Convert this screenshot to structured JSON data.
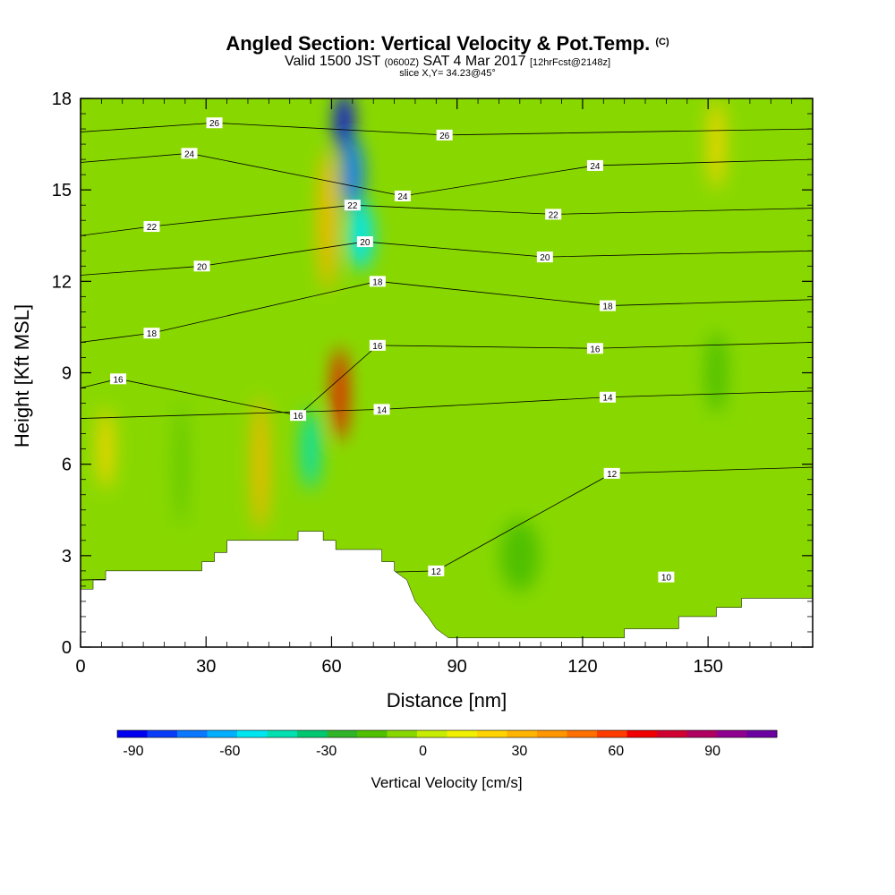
{
  "header": {
    "title_main": "Angled Section: Vertical Velocity & Pot.Temp.",
    "title_mark": "(C)",
    "valid_prefix": "Valid 1500 JST",
    "valid_z": "(0600Z)",
    "valid_date": "SAT 4 Mar 2017",
    "valid_fcst": "[12hrFcst@2148z]",
    "slice": "slice X,Y= 34.23@45°"
  },
  "chart_data": {
    "type": "heatmap",
    "xlabel": "Distance [nm]",
    "ylabel": "Height [Kft MSL]",
    "xlim": [
      0,
      175
    ],
    "ylim": [
      0,
      18
    ],
    "x_ticks": [
      0,
      30,
      60,
      90,
      120,
      150
    ],
    "y_ticks": [
      0,
      3,
      6,
      9,
      12,
      15,
      18
    ],
    "grid": false,
    "field": "Vertical Velocity [cm/s]",
    "colorbar": {
      "title": "Vertical Velocity [cm/s]",
      "placement": "bottom",
      "range": [
        -95,
        110
      ],
      "tick_values": [
        -90,
        -60,
        -30,
        0,
        30,
        60,
        90
      ],
      "tick_labels": [
        "-90",
        "-60",
        "-30",
        "0",
        "30",
        "60",
        "90"
      ],
      "colors": [
        "#0000f0",
        "#0a3cf8",
        "#0a78ff",
        "#00b0ff",
        "#00e6f0",
        "#00e0b0",
        "#00c870",
        "#30b428",
        "#50c000",
        "#88d800",
        "#c8ec00",
        "#f0f000",
        "#ffd400",
        "#ffb400",
        "#ff9600",
        "#ff7000",
        "#ff3c00",
        "#f00000",
        "#d00030",
        "#b00060",
        "#900090",
        "#6a00a0"
      ]
    },
    "velocity_features": [
      {
        "x": 63,
        "y": 17.2,
        "value": -90
      },
      {
        "x": 65,
        "y": 15.5,
        "value": -70
      },
      {
        "x": 67,
        "y": 13.5,
        "value": -50
      },
      {
        "x": 62,
        "y": 8.3,
        "value": 70
      },
      {
        "x": 59,
        "y": 14,
        "value": 30
      },
      {
        "x": 55,
        "y": 6.5,
        "value": -40
      },
      {
        "x": 43,
        "y": 6,
        "value": 30
      },
      {
        "x": 6,
        "y": 6.5,
        "value": 20
      },
      {
        "x": 24,
        "y": 6,
        "value": -20
      },
      {
        "x": 152,
        "y": 9,
        "value": -20
      },
      {
        "x": 152,
        "y": 16.5,
        "value": 25
      },
      {
        "x": 105,
        "y": 3,
        "value": -15
      }
    ],
    "theta_contours": [
      {
        "value": 10,
        "label_x": 140,
        "label_y": 2.3
      },
      {
        "value": 12,
        "label_x": 85,
        "label_y": 2.5
      },
      {
        "value": 12,
        "label_x": 127,
        "label_y": 5.7
      },
      {
        "value": 14,
        "label_x": 72,
        "label_y": 7.8
      },
      {
        "value": 14,
        "label_x": 126,
        "label_y": 8.2
      },
      {
        "value": 16,
        "label_x": 9,
        "label_y": 8.8
      },
      {
        "value": 16,
        "label_x": 52,
        "label_y": 7.6
      },
      {
        "value": 16,
        "label_x": 71,
        "label_y": 9.9
      },
      {
        "value": 16,
        "label_x": 123,
        "label_y": 9.8
      },
      {
        "value": 18,
        "label_x": 17,
        "label_y": 10.3
      },
      {
        "value": 18,
        "label_x": 71,
        "label_y": 12
      },
      {
        "value": 18,
        "label_x": 126,
        "label_y": 11.2
      },
      {
        "value": 20,
        "label_x": 29,
        "label_y": 12.5
      },
      {
        "value": 20,
        "label_x": 68,
        "label_y": 13.3
      },
      {
        "value": 20,
        "label_x": 111,
        "label_y": 12.8
      },
      {
        "value": 22,
        "label_x": 17,
        "label_y": 13.8
      },
      {
        "value": 22,
        "label_x": 65,
        "label_y": 14.5
      },
      {
        "value": 22,
        "label_x": 113,
        "label_y": 14.2
      },
      {
        "value": 24,
        "label_x": 26,
        "label_y": 16.2
      },
      {
        "value": 24,
        "label_x": 77,
        "label_y": 14.8
      },
      {
        "value": 24,
        "label_x": 123,
        "label_y": 15.8
      },
      {
        "value": 26,
        "label_x": 32,
        "label_y": 17.2
      },
      {
        "value": 26,
        "label_x": 87,
        "label_y": 16.8
      }
    ],
    "terrain": [
      [
        0,
        1.9
      ],
      [
        3,
        1.9
      ],
      [
        3,
        2.2
      ],
      [
        6,
        2.2
      ],
      [
        6,
        2.5
      ],
      [
        29,
        2.5
      ],
      [
        29,
        2.8
      ],
      [
        32,
        2.8
      ],
      [
        32,
        3.1
      ],
      [
        35,
        3.1
      ],
      [
        35,
        3.5
      ],
      [
        52,
        3.5
      ],
      [
        52,
        3.8
      ],
      [
        58,
        3.8
      ],
      [
        58,
        3.5
      ],
      [
        61,
        3.5
      ],
      [
        61,
        3.2
      ],
      [
        72,
        3.2
      ],
      [
        72,
        2.8
      ],
      [
        75,
        2.8
      ],
      [
        75,
        2.5
      ],
      [
        78,
        2.2
      ],
      [
        80,
        1.5
      ],
      [
        83,
        1.0
      ],
      [
        85,
        0.6
      ],
      [
        88,
        0.3
      ],
      [
        130,
        0.3
      ],
      [
        130,
        0.6
      ],
      [
        143,
        0.6
      ],
      [
        143,
        1.0
      ],
      [
        152,
        1.0
      ],
      [
        152,
        1.3
      ],
      [
        158,
        1.3
      ],
      [
        158,
        1.6
      ],
      [
        175,
        1.6
      ]
    ]
  }
}
